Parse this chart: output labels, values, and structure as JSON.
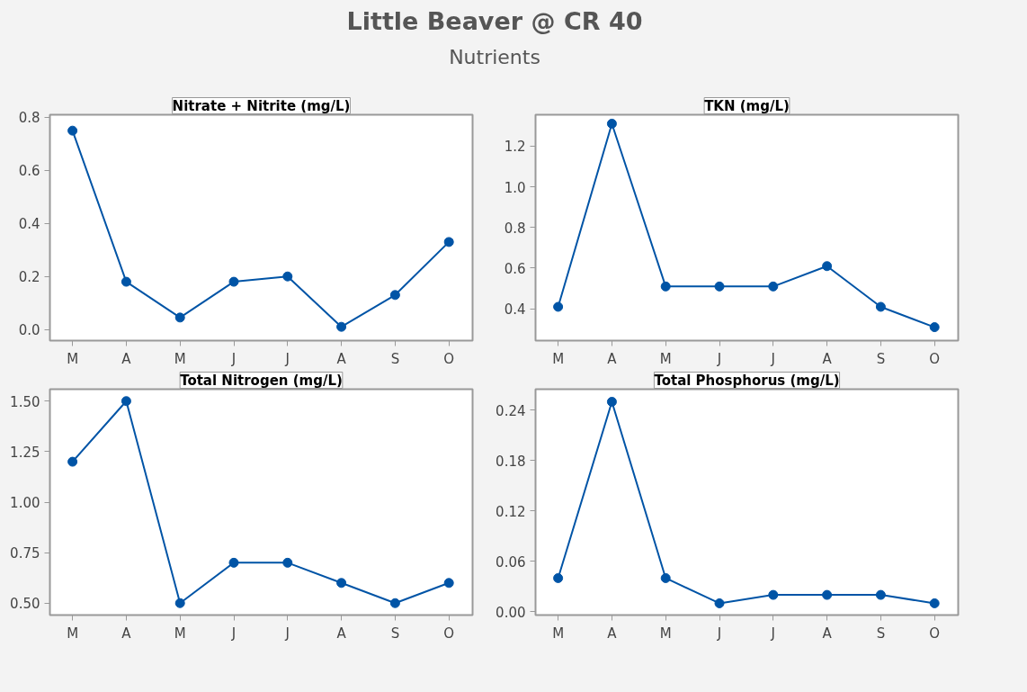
{
  "chart_data": [
    {
      "type": "other",
      "title": "Little Beaver @ CR 40",
      "subtitle": "Nutrients"
    },
    {
      "type": "line",
      "title": "Nitrate + Nitrite (mg/L)",
      "categories": [
        "M",
        "A",
        "M",
        "J",
        "J",
        "A",
        "S",
        "O"
      ],
      "series": [
        {
          "color": "#0054a6",
          "values": [
            0.75,
            0.18,
            0.045,
            0.18,
            0.2,
            0.01,
            0.13,
            0.33
          ]
        }
      ],
      "ylim": [
        -0.042,
        0.81
      ],
      "yticks": [
        {
          "value": 0,
          "label": "0.0"
        },
        0.2,
        0.4,
        0.6,
        0.8
      ],
      "marker": "circle",
      "line_style": "solid",
      "grid": false
    },
    {
      "type": "line",
      "title": "TKN (mg/L)",
      "categories": [
        "M",
        "A",
        "M",
        "J",
        "J",
        "A",
        "S",
        "O"
      ],
      "series": [
        {
          "color": "#0054a6",
          "values": [
            0.41,
            1.31,
            0.51,
            0.51,
            0.51,
            0.61,
            0.41,
            0.31
          ]
        }
      ],
      "ylim": [
        0.244,
        1.354
      ],
      "yticks": [
        0.4,
        0.6,
        0.8,
        {
          "value": 1,
          "label": "1.0"
        },
        1.2
      ],
      "marker": "circle",
      "line_style": "solid",
      "grid": false
    },
    {
      "type": "line",
      "title": "Total Nitrogen (mg/L)",
      "categories": [
        "M",
        "A",
        "M",
        "J",
        "J",
        "A",
        "S",
        "O"
      ],
      "series": [
        {
          "color": "#0054a6",
          "values": [
            1.2,
            1.5,
            0.5,
            0.7,
            0.7,
            0.6,
            0.5,
            0.6
          ]
        }
      ],
      "ylim": [
        0.441,
        1.559
      ],
      "yticks": [
        {
          "value": 0.5,
          "label": "0.50"
        },
        0.75,
        {
          "value": 1,
          "label": "1.00"
        },
        1.25,
        {
          "value": 1.5,
          "label": "1.50"
        }
      ],
      "marker": "circle",
      "line_style": "solid",
      "grid": false
    },
    {
      "type": "line",
      "title": "Total Phosphorus (mg/L)",
      "categories": [
        "M",
        "A",
        "M",
        "J",
        "J",
        "A",
        "S",
        "O"
      ],
      "series": [
        {
          "color": "#0054a6",
          "values": [
            0.04,
            0.25,
            0.04,
            0.01,
            0.02,
            0.02,
            0.02,
            0.01
          ]
        }
      ],
      "ylim": [
        -0.004,
        0.265
      ],
      "yticks": [
        {
          "value": 0,
          "label": "0.00"
        },
        0.06,
        0.12,
        0.18,
        0.24
      ],
      "marker": "circle",
      "line_style": "solid",
      "grid": false
    }
  ]
}
